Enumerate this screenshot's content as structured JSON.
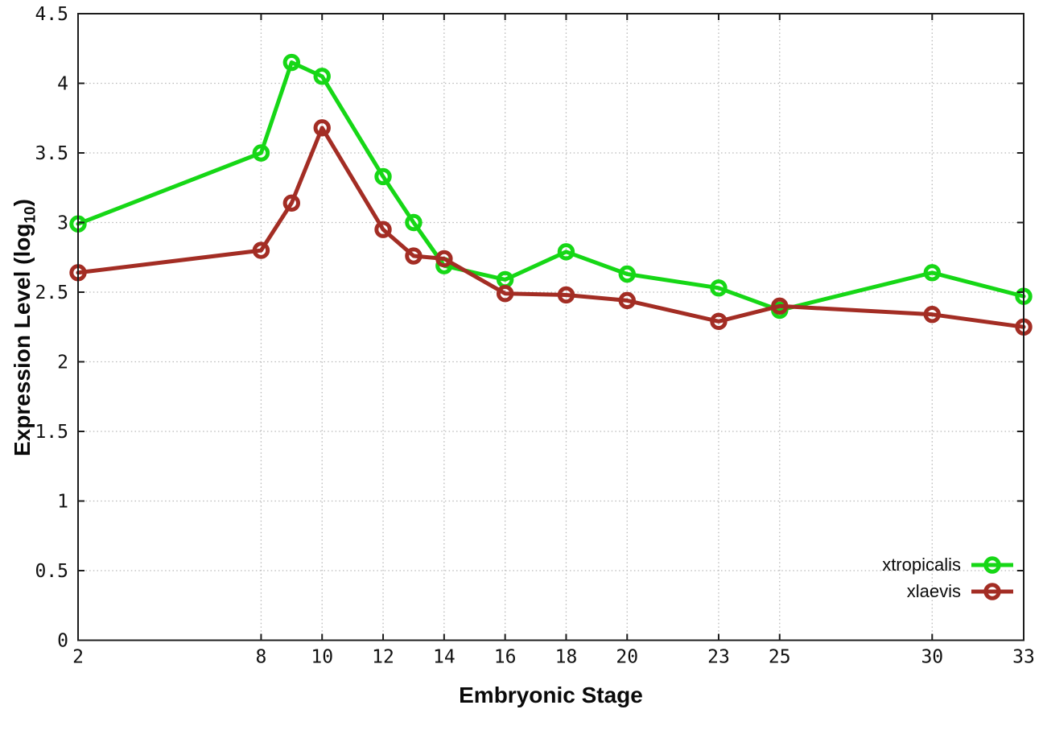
{
  "figure": {
    "background": "#ffffff",
    "border_color": "#1c1c1c",
    "grid_color": "#b8b8b8",
    "tick_label_color": "#111111"
  },
  "chart_data": {
    "type": "line",
    "title": "",
    "xlabel": "Embryonic Stage",
    "ylabel": "Expression Level (log10)",
    "ylabel_parts": {
      "main": "Expression Level (log",
      "sub": "10",
      "end": ")"
    },
    "xlim": [
      2,
      33
    ],
    "ylim": [
      0,
      4.5
    ],
    "xticks": [
      2,
      8,
      10,
      12,
      14,
      16,
      18,
      20,
      23,
      25,
      30,
      33
    ],
    "xtick_labels": [
      "2",
      "8",
      "10",
      "12",
      "14",
      "16",
      "18",
      "20",
      "23",
      "25",
      "30",
      "33"
    ],
    "yticks": [
      0,
      0.5,
      1,
      1.5,
      2,
      2.5,
      3,
      3.5,
      4,
      4.5
    ],
    "ytick_labels": [
      "0",
      "0.5",
      "1",
      "1.5",
      "2",
      "2.5",
      "3",
      "3.5",
      "4",
      "4.5"
    ],
    "grid": true,
    "legend_position": "bottom-right",
    "marker": "open-circle",
    "x": [
      2,
      8,
      9,
      10,
      12,
      13,
      14,
      16,
      18,
      20,
      23,
      25,
      30,
      33
    ],
    "series": [
      {
        "name": "xtropicalis",
        "color": "#16d716",
        "values": [
          2.99,
          3.5,
          4.15,
          4.05,
          3.33,
          3.0,
          2.69,
          2.59,
          2.79,
          2.63,
          2.53,
          2.37,
          2.64,
          2.47
        ]
      },
      {
        "name": "xlaevis",
        "color": "#a32d24",
        "values": [
          2.64,
          2.8,
          3.14,
          3.68,
          2.95,
          2.76,
          2.74,
          2.49,
          2.48,
          2.44,
          2.29,
          2.4,
          2.34,
          2.25
        ]
      }
    ]
  }
}
